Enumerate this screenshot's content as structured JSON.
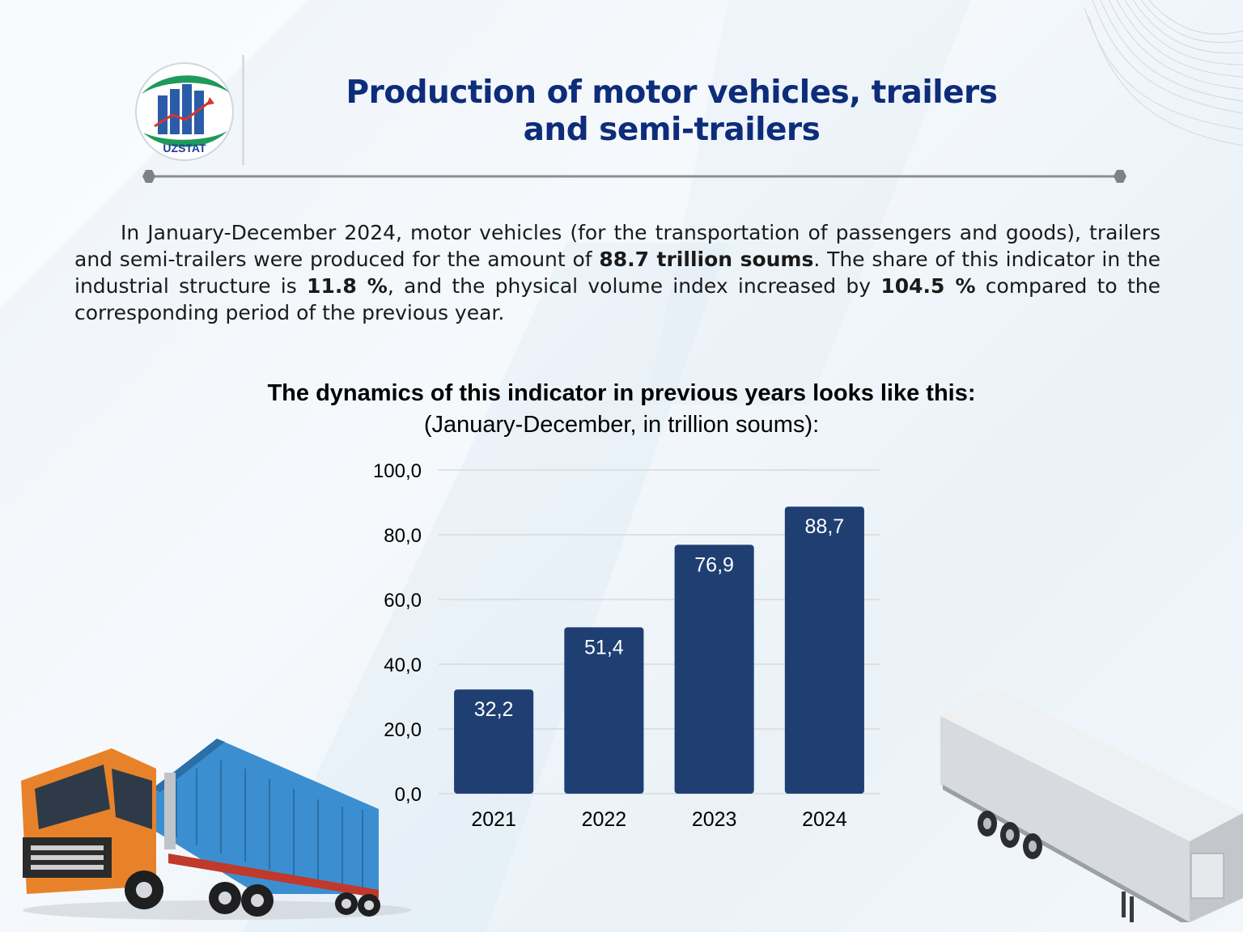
{
  "logo": {
    "text": "UZSTAT"
  },
  "title": {
    "line1": "Production of motor vehicles, trailers",
    "line2": "and semi-trailers"
  },
  "body": {
    "part1": "In January-December 2024, motor vehicles (for the transportation of passengers and goods), trailers and semi-trailers were produced for the amount of ",
    "bold1": "88.7 trillion soums",
    "part2": ". The share of this indicator in the industrial structure is ",
    "bold2": "11.8 %",
    "part3": ", and the physical volume index increased by ",
    "bold3": "104.5 %",
    "part4": " compared to the corresponding period of the previous year."
  },
  "chart_title": "The dynamics of this indicator in previous years looks like this:",
  "chart_subtitle": "(January-December, in trillion soums):",
  "colors": {
    "title": "#0d2c7a",
    "bar": "#1f3f73",
    "grid": "#d9d9d9"
  },
  "chart_data": {
    "type": "bar",
    "categories": [
      "2021",
      "2022",
      "2023",
      "2024"
    ],
    "values": [
      32.2,
      51.4,
      76.9,
      88.7
    ],
    "data_labels": [
      "32,2",
      "51,4",
      "76,9",
      "88,7"
    ],
    "yticks": [
      "0,0",
      "20,0",
      "40,0",
      "60,0",
      "80,0",
      "100,0"
    ],
    "ylim": [
      0,
      100
    ],
    "grid": true,
    "legend": "none"
  },
  "illustrations": [
    "orange-truck-with-blue-container",
    "white-semi-trailer"
  ]
}
